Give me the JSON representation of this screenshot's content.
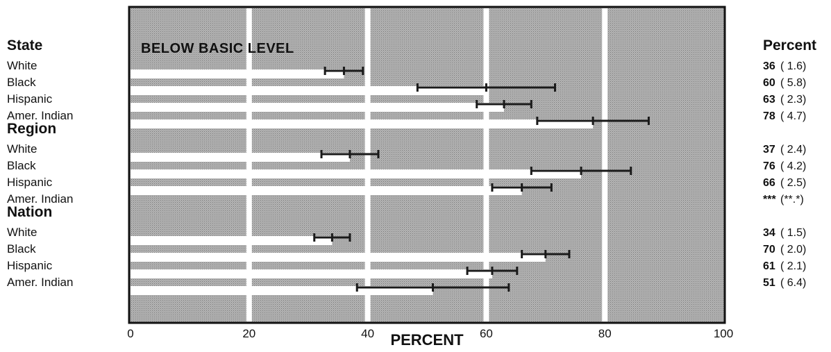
{
  "chart_data": {
    "type": "bar",
    "title": "BELOW BASIC LEVEL",
    "xlabel": "PERCENT",
    "xlim": [
      0,
      100
    ],
    "xticks": [
      "0",
      "20",
      "40",
      "60",
      "80",
      "100"
    ],
    "value_column_header": "Percent",
    "orientation": "horizontal",
    "error_bars": "confidence interval drawn around each estimate",
    "groups": [
      {
        "name": "State",
        "rows": [
          {
            "label": "White",
            "value": 36,
            "se": 1.6,
            "value_text": "36",
            "se_text": "( 1.6)"
          },
          {
            "label": "Black",
            "value": 60,
            "se": 5.8,
            "value_text": "60",
            "se_text": "( 5.8)"
          },
          {
            "label": "Hispanic",
            "value": 63,
            "se": 2.3,
            "value_text": "63",
            "se_text": "( 2.3)"
          },
          {
            "label": "Amer. Indian",
            "value": 78,
            "se": 4.7,
            "value_text": "78",
            "se_text": "( 4.7)"
          }
        ]
      },
      {
        "name": "Region",
        "rows": [
          {
            "label": "White",
            "value": 37,
            "se": 2.4,
            "value_text": "37",
            "se_text": "( 2.4)"
          },
          {
            "label": "Black",
            "value": 76,
            "se": 4.2,
            "value_text": "76",
            "se_text": "( 4.2)"
          },
          {
            "label": "Hispanic",
            "value": 66,
            "se": 2.5,
            "value_text": "66",
            "se_text": "( 2.5)"
          },
          {
            "label": "Amer. Indian",
            "value": null,
            "se": null,
            "value_text": "***",
            "se_text": "(**.*)"
          }
        ]
      },
      {
        "name": "Nation",
        "rows": [
          {
            "label": "White",
            "value": 34,
            "se": 1.5,
            "value_text": "34",
            "se_text": "( 1.5)"
          },
          {
            "label": "Black",
            "value": 70,
            "se": 2.0,
            "value_text": "70",
            "se_text": "( 2.0)"
          },
          {
            "label": "Hispanic",
            "value": 61,
            "se": 2.1,
            "value_text": "61",
            "se_text": "( 2.1)"
          },
          {
            "label": "Amer. Indian",
            "value": 51,
            "se": 6.4,
            "value_text": "51",
            "se_text": "( 6.4)"
          }
        ]
      }
    ]
  },
  "colors": {
    "panel_fill": "#a9a9a9",
    "panel_border": "#111111",
    "bar_fill": "#ffffff",
    "gridline": "#ffffff",
    "error_bar": "#1a1a1a",
    "text": "#111111"
  },
  "grid": true
}
